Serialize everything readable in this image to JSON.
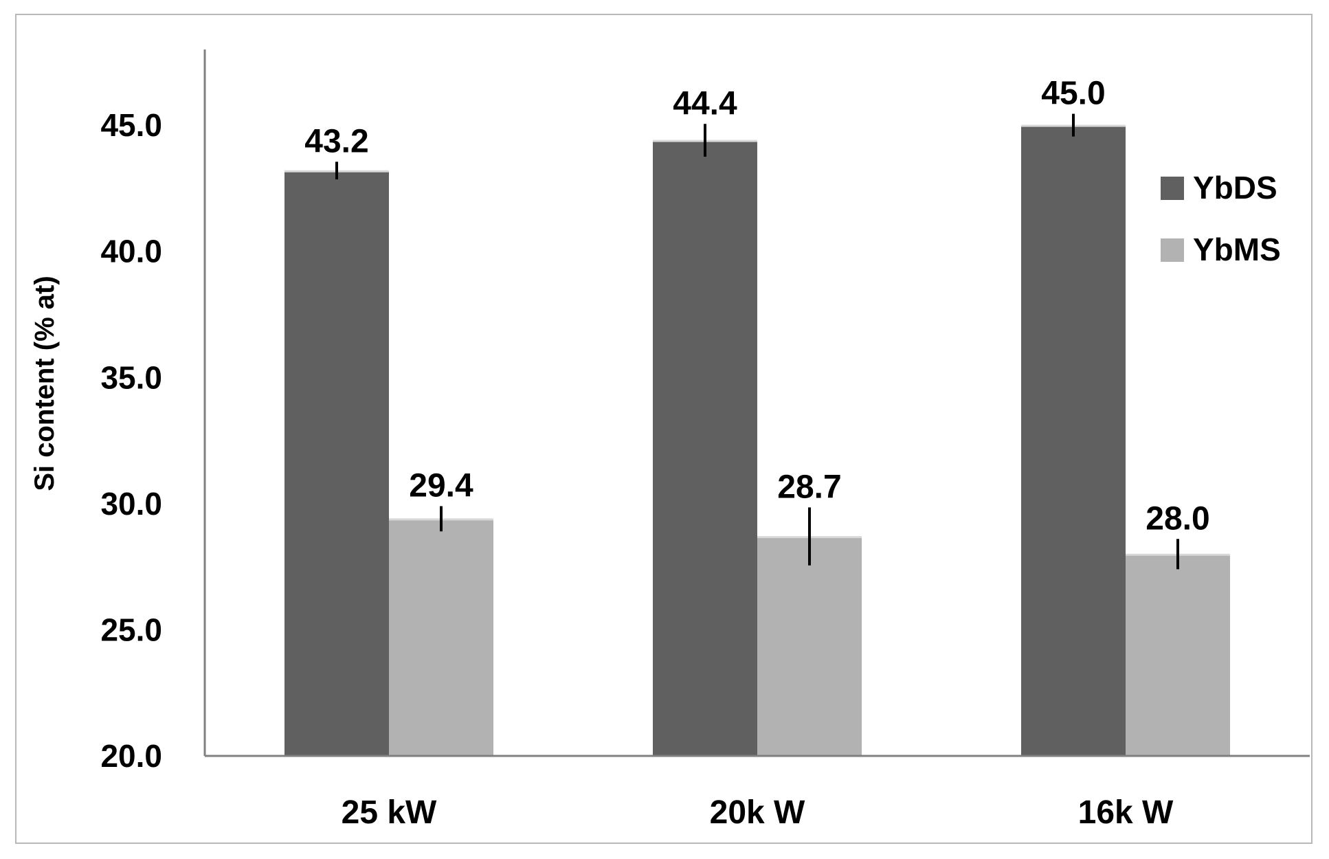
{
  "chart_data": {
    "type": "bar",
    "ylabel": "Si content (% at)",
    "xlabel": "",
    "ylim": [
      20,
      48
    ],
    "yticks": [
      "20.0",
      "25.0",
      "30.0",
      "35.0",
      "40.0",
      "45.0"
    ],
    "categories": [
      "25 kW",
      "20k W",
      "16k W"
    ],
    "series": [
      {
        "name": "YbDS",
        "color": "#606060",
        "values": [
          43.2,
          44.4,
          45.0
        ],
        "labels": [
          "43.2",
          "44.4",
          "45.0"
        ],
        "error": [
          0.35,
          0.65,
          0.45
        ]
      },
      {
        "name": "YbMS",
        "color": "#b2b2b2",
        "values": [
          29.4,
          28.7,
          28.0
        ],
        "labels": [
          "29.4",
          "28.7",
          "28.0"
        ],
        "error": [
          0.5,
          1.15,
          0.6
        ]
      }
    ],
    "grid": false,
    "legend": "right"
  }
}
